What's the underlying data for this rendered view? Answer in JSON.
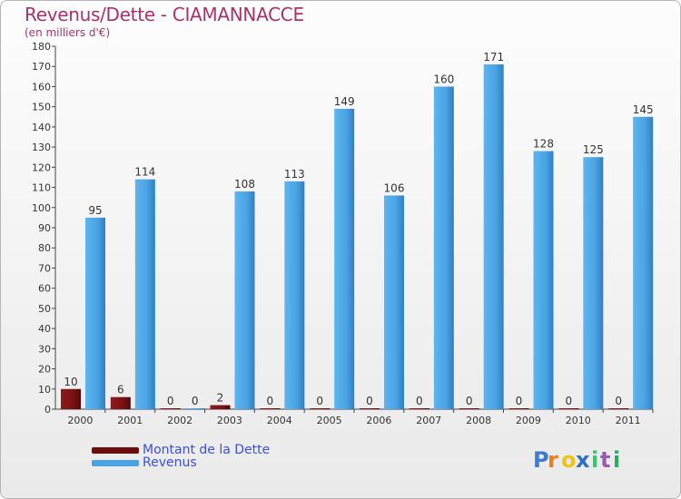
{
  "header": {
    "title": "Revenus/Dette - CIAMANNACCE",
    "unit": "(en milliers d'€)"
  },
  "legend": {
    "items": [
      {
        "label": "Montant de la Dette",
        "color": "#6b0e0e"
      },
      {
        "label": "Revenus",
        "color": "#4aa3e3"
      }
    ]
  },
  "logo": {
    "letters": [
      "P",
      "r",
      "o",
      "x",
      "i",
      "t",
      "i"
    ],
    "colors": [
      "#3b7bd4",
      "#e67e22",
      "#f1c40f",
      "#2c6fbf",
      "#2ecc71",
      "#9b59b6",
      "#27ae60"
    ]
  },
  "chart_data": {
    "type": "bar",
    "categories": [
      "2000",
      "2001",
      "2002",
      "2003",
      "2004",
      "2005",
      "2006",
      "2007",
      "2008",
      "2009",
      "2010",
      "2011"
    ],
    "series": [
      {
        "name": "Montant de la Dette",
        "values": [
          10,
          6,
          0,
          2,
          0,
          0,
          0,
          0,
          0,
          0,
          0,
          0
        ],
        "color": "#7a1212"
      },
      {
        "name": "Revenus",
        "values": [
          95,
          114,
          0,
          108,
          113,
          149,
          106,
          160,
          171,
          128,
          125,
          145
        ],
        "color": "#4aa3e3"
      }
    ],
    "ylim": [
      0,
      180
    ],
    "ytick_step": 10,
    "grid": false,
    "legend_position": "bottom-left"
  }
}
